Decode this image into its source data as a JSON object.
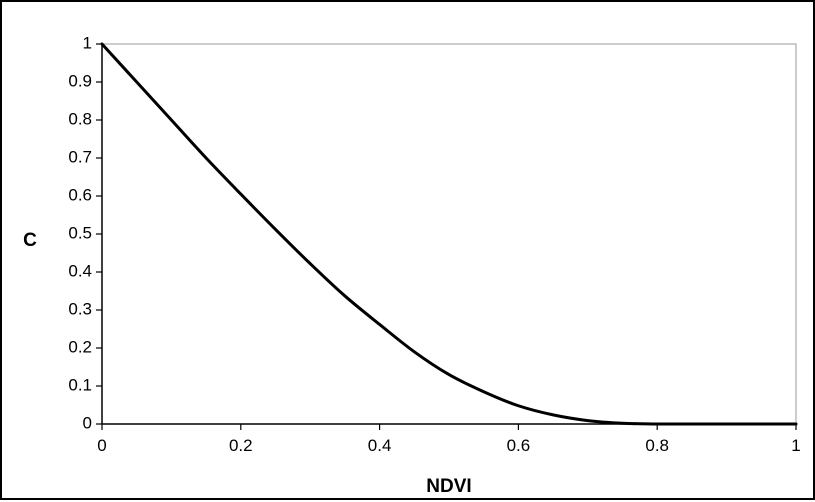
{
  "chart_data": {
    "type": "line",
    "title": "",
    "xlabel": "NDVI",
    "ylabel": "C",
    "xlim": [
      0,
      1
    ],
    "ylim": [
      0,
      1
    ],
    "x_ticks": [
      "0",
      "0.2",
      "0.4",
      "0.6",
      "0.8",
      "1"
    ],
    "y_ticks": [
      "0",
      "0.1",
      "0.2",
      "0.3",
      "0.4",
      "0.5",
      "0.6",
      "0.7",
      "0.8",
      "0.9",
      "1"
    ],
    "grid": false,
    "legend": "none",
    "series": [
      {
        "color": "#000000",
        "x": [
          0,
          0.05,
          0.1,
          0.15,
          0.2,
          0.25,
          0.3,
          0.35,
          0.4,
          0.45,
          0.5,
          0.55,
          0.6,
          0.65,
          0.7,
          0.75,
          0.8,
          0.85,
          0.9,
          0.95,
          1.0
        ],
        "y": [
          1.0,
          0.9,
          0.8,
          0.7,
          0.605,
          0.512,
          0.422,
          0.337,
          0.262,
          0.19,
          0.13,
          0.085,
          0.048,
          0.024,
          0.009,
          0.002,
          0.0,
          0.0,
          0.0,
          0.0,
          0.0
        ]
      }
    ]
  }
}
